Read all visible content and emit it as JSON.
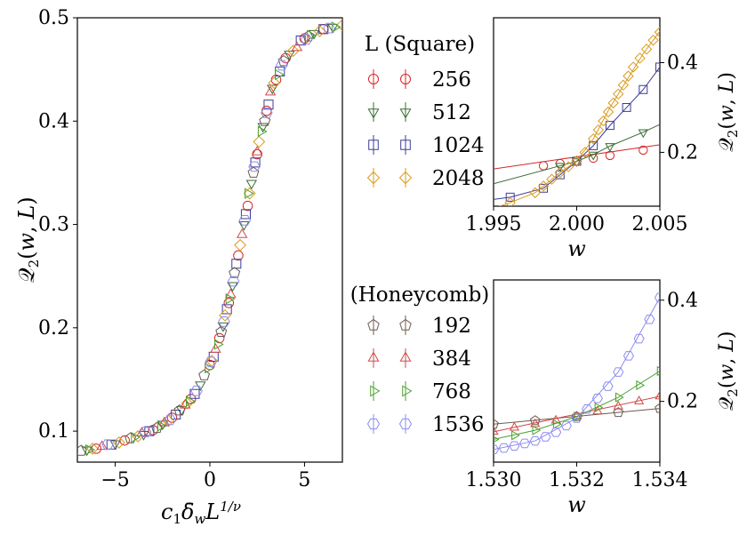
{
  "chart_data": [
    {
      "id": "main",
      "type": "scatter",
      "title": "",
      "xlabel": "c₁δ̄_w L^{1/ν}",
      "ylabel": "Q₂(w, L)",
      "xlim": [
        -7,
        7
      ],
      "ylim": [
        0.07,
        0.5
      ],
      "xticks": [
        -5,
        0,
        5
      ],
      "xtick_labels": [
        "−5",
        "0",
        "5"
      ],
      "yticks": [
        0.1,
        0.2,
        0.3,
        0.4,
        0.5
      ],
      "ytick_labels": [
        "0.1",
        "0.2",
        "0.3",
        "0.4",
        "0.5"
      ],
      "grid": false,
      "collapse_curve": {
        "x": [
          -7,
          -6,
          -5,
          -4,
          -3,
          -2,
          -1.5,
          -1,
          -0.5,
          0,
          0.5,
          1,
          1.5,
          2,
          2.5,
          3,
          3.5,
          4,
          4.5,
          5,
          5.5,
          6,
          6.5,
          7
        ],
        "y": [
          0.081,
          0.084,
          0.088,
          0.094,
          0.102,
          0.113,
          0.121,
          0.131,
          0.145,
          0.164,
          0.19,
          0.224,
          0.268,
          0.318,
          0.367,
          0.41,
          0.44,
          0.46,
          0.471,
          0.479,
          0.485,
          0.489,
          0.491,
          0.493
        ]
      },
      "series": [
        {
          "name": "256 (Square)",
          "marker": "circle",
          "color": "#d62728",
          "x": [
            -6,
            -4.5,
            -3,
            -2,
            -1,
            0,
            0.5,
            1,
            1.5,
            2,
            2.5,
            3,
            3.5,
            4,
            5,
            6
          ],
          "y": [
            0.083,
            0.091,
            0.101,
            0.113,
            0.131,
            0.164,
            0.19,
            0.224,
            0.27,
            0.318,
            0.368,
            0.41,
            0.44,
            0.461,
            0.48,
            0.489
          ]
        },
        {
          "name": "512 (Square)",
          "marker": "triangle-down",
          "color": "#3a6b35",
          "x": [
            -6.5,
            -5,
            -3.5,
            -2.5,
            -1.5,
            -0.5,
            0.7,
            1.2,
            1.8,
            2.2,
            2.8,
            3.3,
            4.2,
            5.5,
            6.5
          ],
          "y": [
            0.082,
            0.088,
            0.097,
            0.107,
            0.121,
            0.145,
            0.202,
            0.241,
            0.3,
            0.34,
            0.395,
            0.432,
            0.465,
            0.485,
            0.491
          ]
        },
        {
          "name": "1024 (Square)",
          "marker": "square",
          "color": "#3b3b9a",
          "x": [
            -5.2,
            -3.2,
            -1.8,
            -0.8,
            0.2,
            0.9,
            1.4,
            1.9,
            2.4,
            3.1,
            3.7,
            4.8,
            6
          ],
          "y": [
            0.087,
            0.1,
            0.116,
            0.136,
            0.172,
            0.218,
            0.262,
            0.31,
            0.36,
            0.416,
            0.448,
            0.478,
            0.489
          ]
        },
        {
          "name": "2048 (Square)",
          "marker": "diamond",
          "color": "#d99a1c",
          "x": [
            -6.2,
            -4.8,
            -3.8,
            -2.2,
            -1.2,
            0.1,
            0.8,
            1.6,
            2.1,
            2.6,
            3.4,
            4.4,
            5.8,
            7
          ],
          "y": [
            0.083,
            0.089,
            0.095,
            0.11,
            0.127,
            0.168,
            0.212,
            0.28,
            0.33,
            0.38,
            0.437,
            0.468,
            0.487,
            0.493
          ]
        },
        {
          "name": "192 (Honeycomb)",
          "marker": "pentagon",
          "color": "#6b5a50",
          "x": [
            -6.8,
            -4.2,
            -2.8,
            -1.6,
            -0.3,
            0.6,
            1.3,
            2.3,
            2.9,
            3.9,
            5.2
          ],
          "y": [
            0.081,
            0.093,
            0.103,
            0.12,
            0.154,
            0.196,
            0.253,
            0.35,
            0.4,
            0.458,
            0.482
          ]
        },
        {
          "name": "384 (Honeycomb)",
          "marker": "triangle-up",
          "color": "#d14848",
          "x": [
            -5.7,
            -3.6,
            -2.4,
            -1.3,
            0.3,
            1.1,
            1.7,
            2.5,
            3.2,
            4.6
          ],
          "y": [
            0.085,
            0.098,
            0.108,
            0.125,
            0.179,
            0.232,
            0.29,
            0.37,
            0.428,
            0.471
          ]
        },
        {
          "name": "768 (Honeycomb)",
          "marker": "triangle-right",
          "color": "#4aa02c",
          "x": [
            -6.4,
            -4,
            -2.6,
            -1.1,
            -0.1,
            0.4,
            1.0,
            2.0,
            2.7,
            3.6,
            5.3,
            6.6
          ],
          "y": [
            0.082,
            0.094,
            0.105,
            0.129,
            0.161,
            0.184,
            0.228,
            0.33,
            0.39,
            0.445,
            0.483,
            0.491
          ]
        },
        {
          "name": "1536 (Honeycomb)",
          "marker": "hexagon",
          "color": "#8c8cf0",
          "x": [
            -5.4,
            -3.4,
            -2.1,
            -0.7,
            0.05,
            0.75,
            1.25,
            1.85,
            2.35,
            3.0,
            3.8,
            5.1,
            6.3
          ],
          "y": [
            0.087,
            0.099,
            0.111,
            0.139,
            0.167,
            0.206,
            0.245,
            0.304,
            0.356,
            0.408,
            0.454,
            0.479,
            0.49
          ]
        }
      ]
    },
    {
      "id": "square_inset",
      "type": "line",
      "title": "",
      "xlabel": "w",
      "ylabel": "Q₂(w, L)",
      "legend_title": "L (Square)",
      "xlim": [
        1.995,
        2.005
      ],
      "ylim": [
        0.08,
        0.5
      ],
      "xticks": [
        1.995,
        2.0,
        2.005
      ],
      "xtick_labels": [
        "1.995",
        "2.000",
        "2.005"
      ],
      "yticks": [
        0.2,
        0.4
      ],
      "ytick_labels": [
        "0.2",
        "0.4"
      ],
      "series": [
        {
          "name": "256",
          "marker": "circle",
          "color": "#d62728",
          "x": [
            1.998,
            1.999,
            2.0,
            2.001,
            2.002,
            2.004
          ],
          "y": [
            0.17,
            0.175,
            0.181,
            0.187,
            0.193,
            0.205
          ],
          "line": [
            [
              1.995,
              0.163
            ],
            [
              2.005,
              0.217
            ]
          ]
        },
        {
          "name": "512",
          "marker": "triangle-down",
          "color": "#3a6b35",
          "x": [
            1.999,
            2.0,
            2.001,
            2.002,
            2.004
          ],
          "y": [
            0.17,
            0.18,
            0.195,
            0.214,
            0.245
          ],
          "line": [
            [
              1.995,
              0.13
            ],
            [
              1.999,
              0.17
            ],
            [
              2.0,
              0.18
            ],
            [
              2.001,
              0.195
            ],
            [
              2.002,
              0.214
            ],
            [
              2.004,
              0.245
            ],
            [
              2.005,
              0.262
            ]
          ]
        },
        {
          "name": "1024",
          "marker": "square",
          "color": "#3b3b9a",
          "x": [
            1.996,
            1.998,
            1.999,
            2.0,
            2.001,
            2.002,
            2.003,
            2.004,
            2.005
          ],
          "y": [
            0.1,
            0.12,
            0.15,
            0.18,
            0.215,
            0.26,
            0.3,
            0.34,
            0.39
          ],
          "line": [
            [
              1.995,
              0.095
            ],
            [
              1.996,
              0.1
            ],
            [
              1.998,
              0.12
            ],
            [
              1.999,
              0.15
            ],
            [
              2.0,
              0.18
            ],
            [
              2.001,
              0.215
            ],
            [
              2.002,
              0.26
            ],
            [
              2.003,
              0.3
            ],
            [
              2.004,
              0.34
            ],
            [
              2.005,
              0.39
            ]
          ]
        },
        {
          "name": "2048",
          "marker": "diamond",
          "color": "#d99a1c",
          "x": [
            1.996,
            1.9975,
            1.998,
            1.9985,
            1.999,
            1.9995,
            2.0,
            2.0005,
            2.001,
            2.0013,
            2.0016,
            2.0019,
            2.0022,
            2.0025,
            2.0028,
            2.0031,
            2.0034,
            2.0038,
            2.0042,
            2.0046,
            2.005
          ],
          "y": [
            0.088,
            0.11,
            0.125,
            0.14,
            0.155,
            0.168,
            0.181,
            0.2,
            0.23,
            0.25,
            0.27,
            0.29,
            0.31,
            0.33,
            0.35,
            0.37,
            0.39,
            0.41,
            0.43,
            0.45,
            0.468
          ],
          "line": [
            [
              1.995,
              0.075
            ],
            [
              1.996,
              0.088
            ],
            [
              1.9975,
              0.11
            ],
            [
              1.998,
              0.125
            ],
            [
              1.999,
              0.155
            ],
            [
              2.0,
              0.181
            ],
            [
              2.001,
              0.23
            ],
            [
              2.002,
              0.3
            ],
            [
              2.003,
              0.36
            ],
            [
              2.004,
              0.42
            ],
            [
              2.005,
              0.47
            ]
          ]
        }
      ]
    },
    {
      "id": "honeycomb_inset",
      "type": "line",
      "title": "",
      "xlabel": "w",
      "ylabel": "Q₂(w, L)",
      "legend_title": "(Honeycomb)",
      "xlim": [
        1.53,
        1.534
      ],
      "ylim": [
        0.08,
        0.44
      ],
      "xticks": [
        1.53,
        1.532,
        1.534
      ],
      "xtick_labels": [
        "1.530",
        "1.532",
        "1.534"
      ],
      "yticks": [
        0.2,
        0.4
      ],
      "ytick_labels": [
        "0.2",
        "0.4"
      ],
      "series": [
        {
          "name": "192",
          "marker": "pentagon",
          "color": "#6b5a50",
          "x": [
            1.53,
            1.531,
            1.532,
            1.533,
            1.534
          ],
          "y": [
            0.155,
            0.162,
            0.17,
            0.178,
            0.186
          ],
          "line": [
            [
              1.53,
              0.155
            ],
            [
              1.534,
              0.186
            ]
          ]
        },
        {
          "name": "384",
          "marker": "triangle-up",
          "color": "#d14848",
          "x": [
            1.53,
            1.5305,
            1.531,
            1.5315,
            1.532,
            1.5325,
            1.533,
            1.5335,
            1.534
          ],
          "y": [
            0.14,
            0.148,
            0.155,
            0.162,
            0.17,
            0.18,
            0.19,
            0.2,
            0.21
          ],
          "line": [
            [
              1.53,
              0.14
            ],
            [
              1.534,
              0.21
            ]
          ]
        },
        {
          "name": "768",
          "marker": "triangle-right",
          "color": "#4aa02c",
          "x": [
            1.53,
            1.5305,
            1.531,
            1.5315,
            1.532,
            1.5325,
            1.533,
            1.5335,
            1.534
          ],
          "y": [
            0.125,
            0.133,
            0.143,
            0.155,
            0.17,
            0.188,
            0.208,
            0.232,
            0.26
          ],
          "line": [
            [
              1.53,
              0.125
            ],
            [
              1.531,
              0.143
            ],
            [
              1.532,
              0.17
            ],
            [
              1.533,
              0.208
            ],
            [
              1.534,
              0.26
            ]
          ]
        },
        {
          "name": "1536",
          "marker": "hexagon",
          "color": "#8c8cf0",
          "x": [
            1.53,
            1.53025,
            1.5305,
            1.53075,
            1.531,
            1.53125,
            1.5315,
            1.53175,
            1.532,
            1.53225,
            1.5325,
            1.53275,
            1.533,
            1.53325,
            1.5335,
            1.53375,
            1.534
          ],
          "y": [
            0.105,
            0.108,
            0.112,
            0.117,
            0.122,
            0.13,
            0.139,
            0.152,
            0.167,
            0.185,
            0.206,
            0.23,
            0.258,
            0.29,
            0.324,
            0.362,
            0.405
          ],
          "line": [
            [
              1.53,
              0.105
            ],
            [
              1.531,
              0.122
            ],
            [
              1.532,
              0.167
            ],
            [
              1.533,
              0.258
            ],
            [
              1.534,
              0.405
            ]
          ]
        }
      ]
    }
  ]
}
